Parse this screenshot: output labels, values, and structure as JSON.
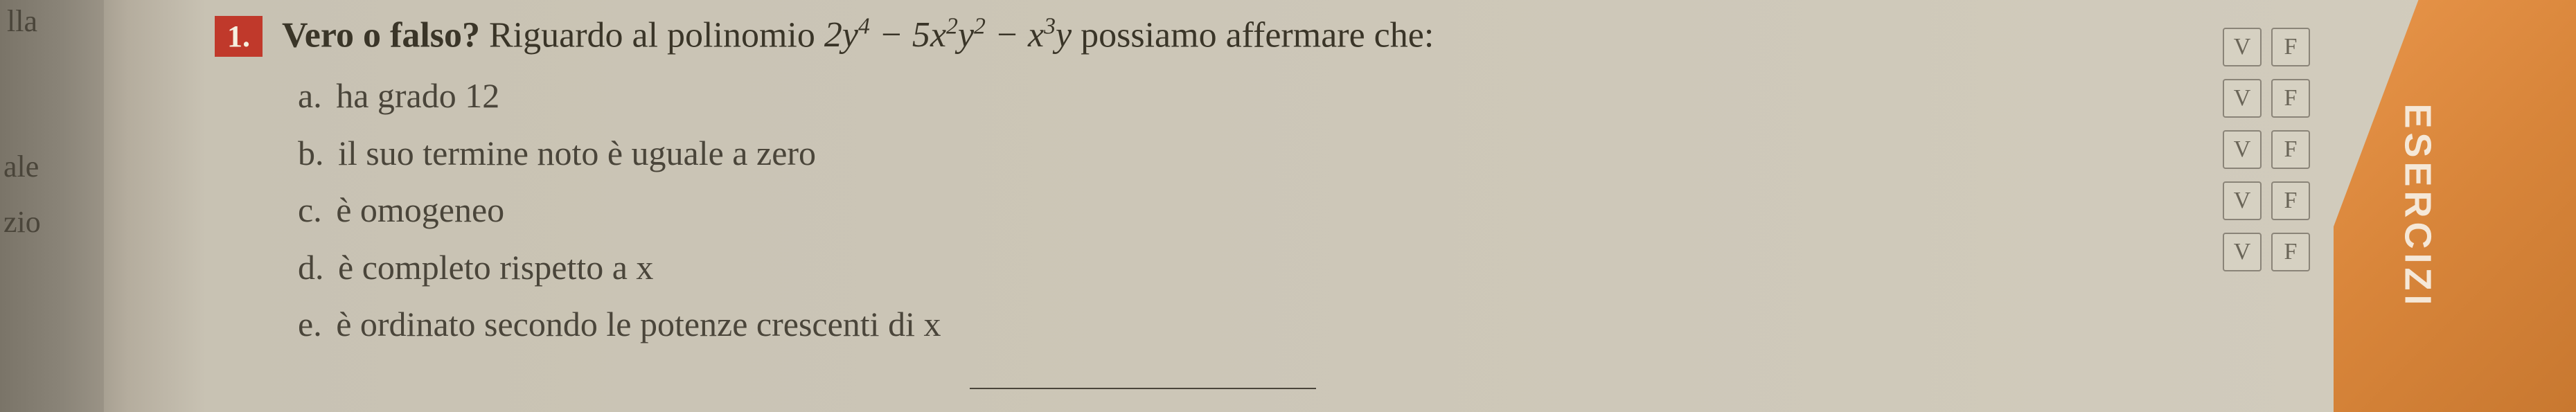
{
  "leftMargin": {
    "label1": "lla",
    "label2": "ale",
    "label3": "zio"
  },
  "question": {
    "number": "1.",
    "prompt_bold": "Vero o falso?",
    "prompt_rest": " Riguardo al polinomio ",
    "polynomial_html": "2y⁴ − 5x²y² − x³y",
    "prompt_end": " possiamo affermare che:"
  },
  "answers": {
    "a": {
      "letter": "a.",
      "text": "ha grado 12"
    },
    "b": {
      "letter": "b.",
      "text": "il suo termine noto è uguale a zero"
    },
    "c": {
      "letter": "c.",
      "text": "è omogeneo"
    },
    "d": {
      "letter": "d.",
      "text": "è completo rispetto a x"
    },
    "e": {
      "letter": "e.",
      "text": "è ordinato secondo le potenze crescenti di x"
    }
  },
  "vf": {
    "v": "V",
    "f": "F"
  },
  "sideTab": {
    "label": "ESERCIZI"
  },
  "colors": {
    "questionNumberBg": "#c0392b",
    "orangeTab": "#d8853a",
    "textColor": "#3a3528",
    "pageBg": "#d2ccbd"
  }
}
